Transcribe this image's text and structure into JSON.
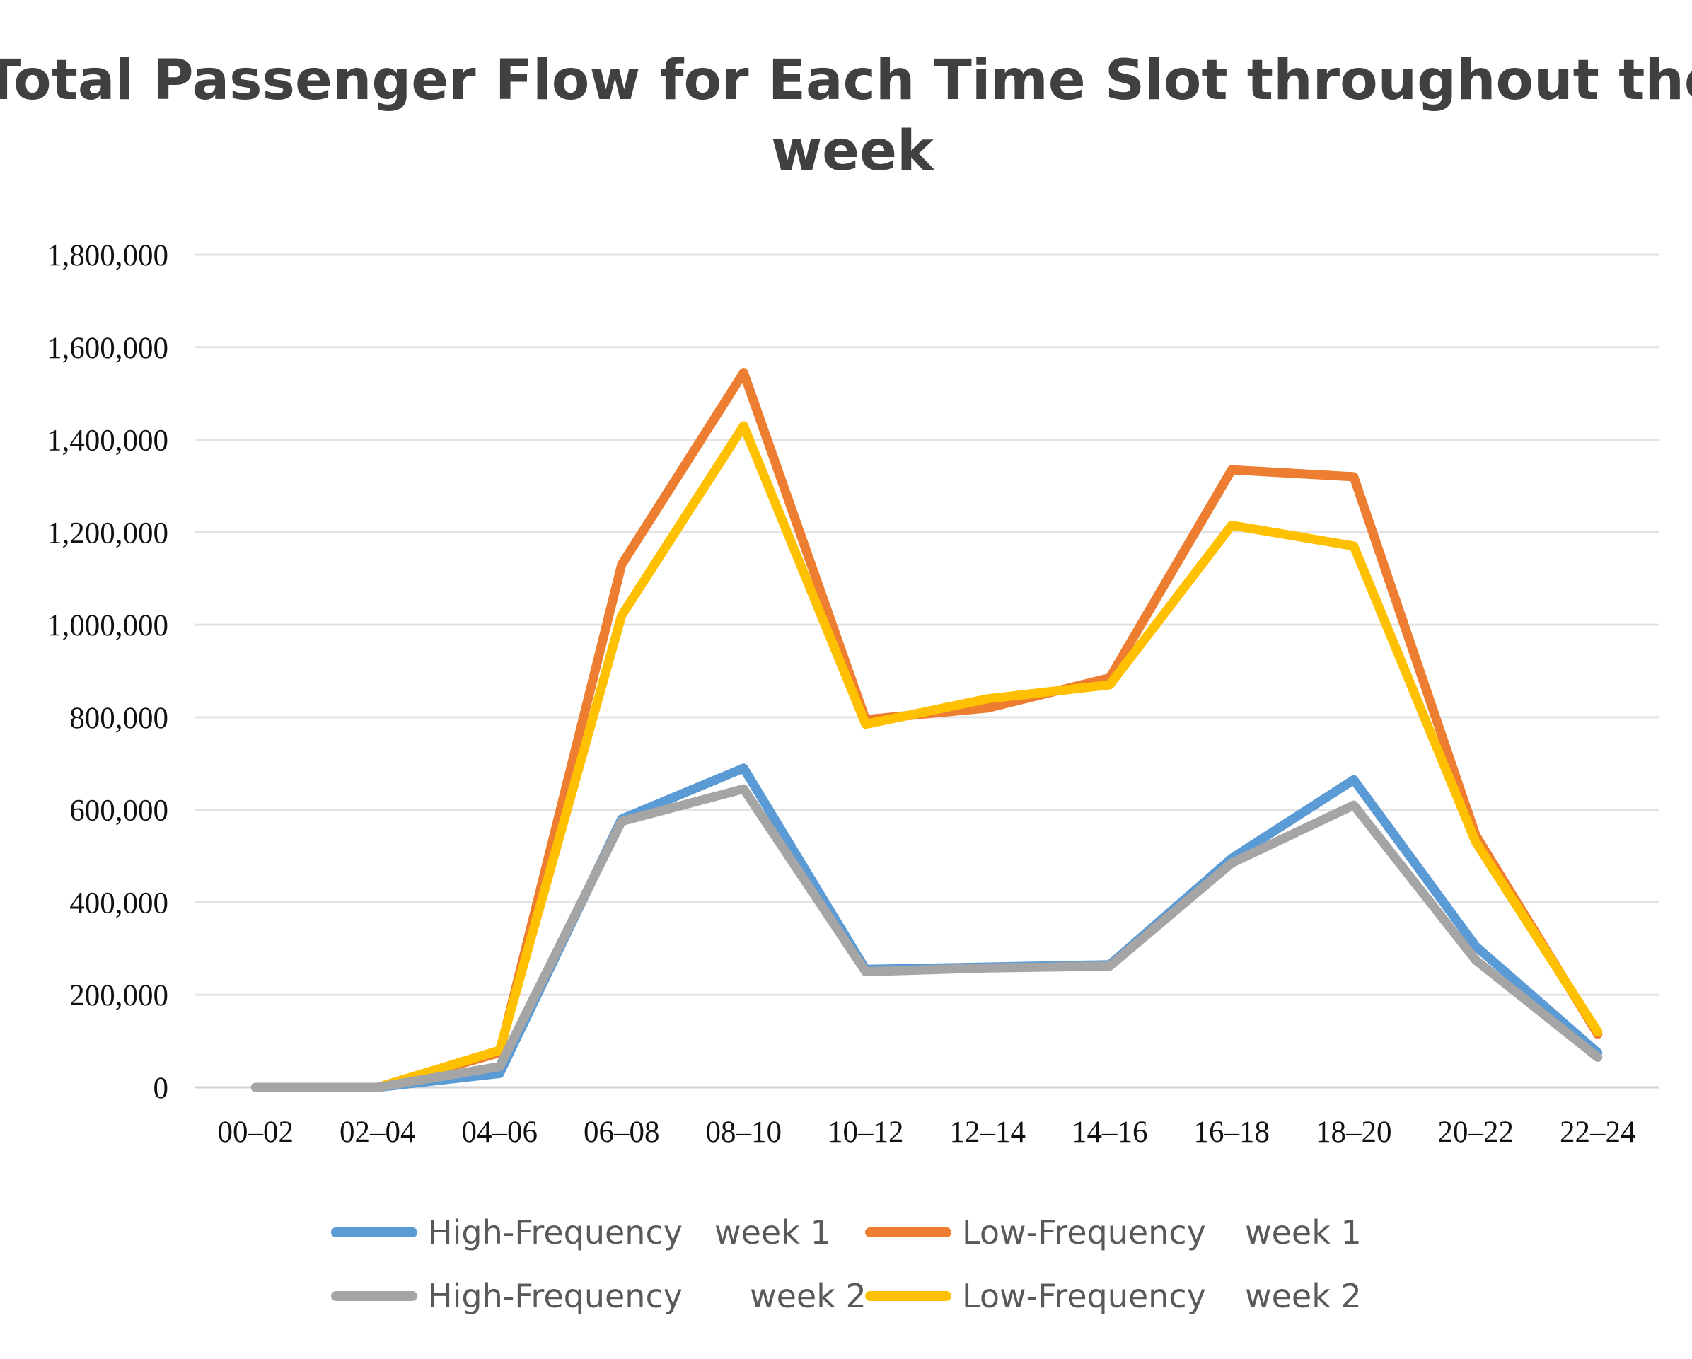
{
  "chart_data": {
    "type": "line",
    "title_lines": [
      "Total Passenger Flow for Each Time Slot throughout the",
      "week"
    ],
    "xlabel": "",
    "ylabel": "",
    "categories": [
      "00–02",
      "02–04",
      "04–06",
      "06–08",
      "08–10",
      "10–12",
      "12–14",
      "14–16",
      "16–18",
      "18–20",
      "20–22",
      "22–24"
    ],
    "ylim": [
      0,
      1800000
    ],
    "yticks": [
      0,
      200000,
      400000,
      600000,
      800000,
      1000000,
      1200000,
      1400000,
      1600000,
      1800000
    ],
    "ytick_labels": [
      "0",
      "200,000",
      "400,000",
      "600,000",
      "800,000",
      "1,000,000",
      "1,200,000",
      "1,400,000",
      "1,600,000",
      "1,800,000"
    ],
    "grid": true,
    "legend_position": "bottom",
    "series": [
      {
        "name": "High-Frequency",
        "week": "week 1",
        "color": "#5b9bd5",
        "values": [
          0,
          0,
          30000,
          580000,
          690000,
          255000,
          260000,
          265000,
          495000,
          665000,
          305000,
          75000
        ]
      },
      {
        "name": "Low-Frequency",
        "week": "week 1",
        "color": "#ed7d31",
        "values": [
          0,
          0,
          75000,
          1130000,
          1545000,
          795000,
          820000,
          885000,
          1335000,
          1320000,
          545000,
          115000
        ]
      },
      {
        "name": "High-Frequency",
        "week": "week 2",
        "color": "#a5a5a5",
        "values": [
          0,
          0,
          45000,
          575000,
          645000,
          250000,
          258000,
          262000,
          485000,
          610000,
          275000,
          65000
        ]
      },
      {
        "name": "Low-Frequency",
        "week": "week 2",
        "color": "#ffc000",
        "values": [
          0,
          0,
          80000,
          1020000,
          1430000,
          785000,
          840000,
          870000,
          1215000,
          1170000,
          530000,
          120000
        ]
      }
    ]
  }
}
